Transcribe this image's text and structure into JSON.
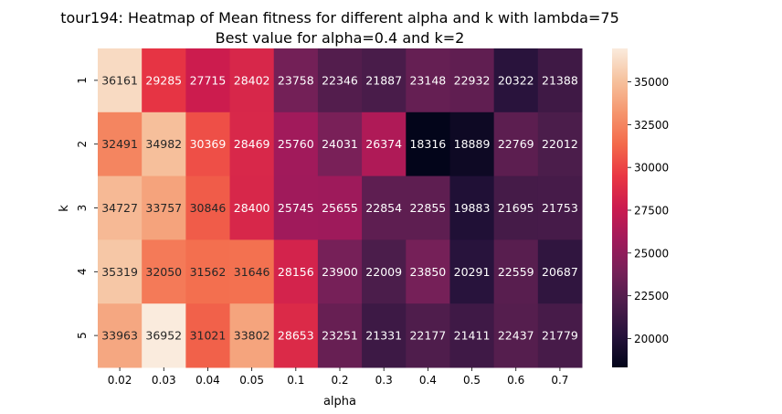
{
  "chart_data": {
    "type": "heatmap",
    "title": "tour194: Heatmap of Mean fitness for different alpha and k with lambda=75",
    "subtitle": "Best value for alpha=0.4 and k=2",
    "xlabel": "alpha",
    "ylabel": "k",
    "x": [
      "0.02",
      "0.03",
      "0.04",
      "0.05",
      "0.1",
      "0.2",
      "0.3",
      "0.4",
      "0.5",
      "0.6",
      "0.7"
    ],
    "y": [
      "1",
      "2",
      "3",
      "4",
      "5"
    ],
    "values": [
      [
        36161,
        29285,
        27715,
        28402,
        23758,
        22346,
        21887,
        23148,
        22932,
        20322,
        21388
      ],
      [
        32491,
        34982,
        30369,
        28469,
        25760,
        24031,
        26374,
        18316,
        18889,
        22769,
        22012
      ],
      [
        34727,
        33757,
        30846,
        28400,
        25745,
        25655,
        22854,
        22855,
        19883,
        21695,
        21753
      ],
      [
        35319,
        32050,
        31562,
        31646,
        28156,
        23900,
        22009,
        23850,
        20291,
        22559,
        20687
      ],
      [
        33963,
        36952,
        31021,
        33802,
        28653,
        23251,
        21331,
        22177,
        21411,
        22437,
        21779
      ]
    ],
    "colorbar": {
      "vmin": 18316,
      "vmax": 36952,
      "ticks": [
        20000,
        22500,
        25000,
        27500,
        30000,
        32500,
        35000
      ],
      "colormap": "rocket"
    }
  }
}
